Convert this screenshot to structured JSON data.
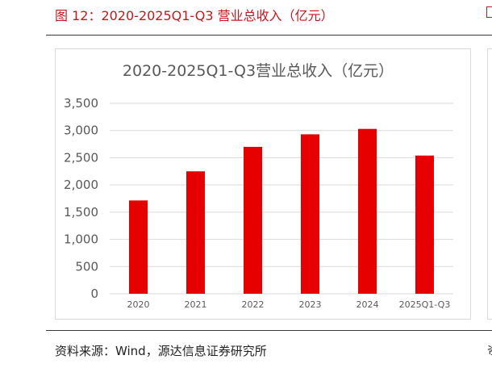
{
  "figure": {
    "title": "图 12：2020-2025Q1-Q3 营业总收入（亿元）",
    "source": "资料来源：Wind，源达信息证券研究所"
  },
  "colors": {
    "title_red": "#c8161d",
    "bar_red": "#e60000",
    "grid": "#d9d9d9",
    "axis_text": "#595959"
  },
  "chart_data": {
    "type": "bar",
    "title": "2020-2025Q1-Q3营业总收入（亿元）",
    "categories": [
      "2020",
      "2021",
      "2022",
      "2023",
      "2024",
      "2025Q1-Q3"
    ],
    "values": [
      1715,
      2250,
      2700,
      2930,
      3030,
      2540
    ],
    "ylim": [
      0,
      3500
    ],
    "yticks": [
      0,
      500,
      1000,
      1500,
      2000,
      2500,
      3000,
      3500
    ],
    "ytick_labels": [
      "0",
      "500",
      "1,000",
      "1,500",
      "2,000",
      "2,500",
      "3,000",
      "3,500"
    ],
    "xlabel": "",
    "ylabel": "",
    "grid": true,
    "legend": "none"
  }
}
